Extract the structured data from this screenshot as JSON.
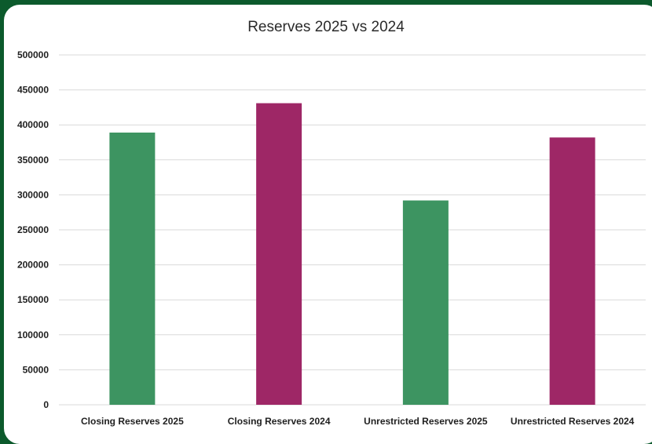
{
  "chart_data": {
    "type": "bar",
    "title": "Reserves 2025 vs 2024",
    "xlabel": "",
    "ylabel": "",
    "categories": [
      "Closing Reserves 2025",
      "Closing Reserves 2024",
      "Unrestricted Reserves 2025",
      "Unrestricted Reserves 2024"
    ],
    "values": [
      389000,
      431000,
      292000,
      382000
    ],
    "bar_colors": [
      "#3d9461",
      "#9e2766",
      "#3d9461",
      "#9e2766"
    ],
    "ylim": [
      0,
      500000
    ],
    "yticks": [
      "0",
      "50000",
      "100000",
      "150000",
      "200000",
      "250000",
      "300000",
      "350000",
      "400000",
      "450000",
      "500000"
    ],
    "grid": true,
    "legend": "none"
  },
  "colors": {
    "background": "#0c5a2c",
    "panel": "#ffffff",
    "gridline": "#d9d9d9"
  }
}
